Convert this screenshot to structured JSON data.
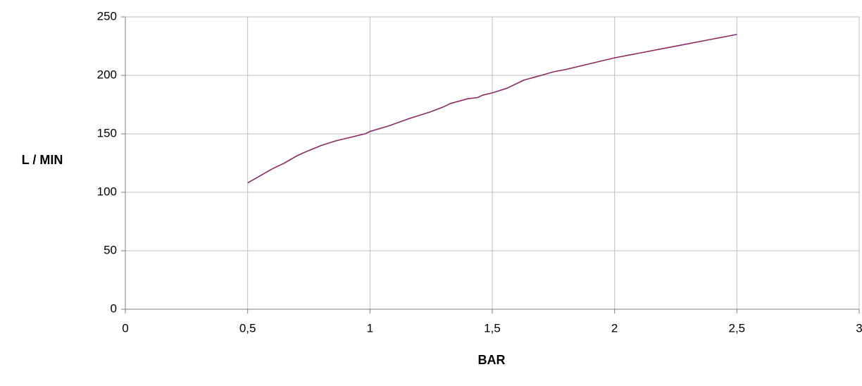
{
  "chart_data": {
    "type": "line",
    "xlabel": "BAR",
    "ylabel": "L / MIN",
    "xlim": [
      0,
      3
    ],
    "ylim": [
      0,
      250
    ],
    "x_ticks": [
      0,
      0.5,
      1,
      1.5,
      2,
      2.5,
      3
    ],
    "x_tick_labels": [
      "0",
      "0,5",
      "1",
      "1,5",
      "2",
      "2,5",
      "3"
    ],
    "y_ticks": [
      0,
      50,
      100,
      150,
      200,
      250
    ],
    "y_tick_labels": [
      "0",
      "50",
      "100",
      "150",
      "200",
      "250"
    ],
    "grid": true,
    "line_color": "#8b2c5e",
    "series": [
      {
        "x": [
          0.5,
          0.55,
          0.6,
          0.65,
          0.7,
          0.73,
          0.8,
          0.86,
          0.92,
          0.98,
          1.0,
          1.08,
          1.16,
          1.25,
          1.3,
          1.33,
          1.4,
          1.44,
          1.46,
          1.5,
          1.56,
          1.6,
          1.63,
          1.7,
          1.75,
          1.8,
          1.9,
          2.0,
          2.1,
          2.2,
          2.3,
          2.4,
          2.5
        ],
        "y": [
          108,
          114,
          120,
          125,
          131,
          134,
          140,
          144,
          147,
          150,
          152,
          157,
          163,
          169,
          173,
          176,
          180,
          181,
          183,
          185,
          189,
          193,
          196,
          200,
          203,
          205,
          210,
          215,
          219,
          223,
          227,
          231,
          235
        ]
      }
    ]
  }
}
